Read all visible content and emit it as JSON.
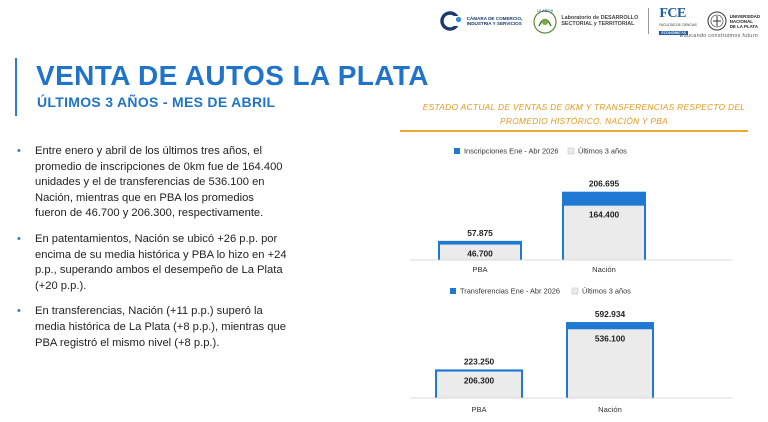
{
  "logos": {
    "camara": [
      "CÁMARA DE COMERCIO,",
      "INDUSTRIA Y SERVICIOS"
    ],
    "laboratorio_badge": "10 AÑOS",
    "laboratorio": [
      "Laboratorio de DESARROLLO",
      "SECTORIAL y TERRITORIAL"
    ],
    "fce_mark": "FCE",
    "fce_sub": "FACULTAD DE CIENCIAS",
    "fce_bar": "ECONÓMICAS",
    "unlp": [
      "UNIVERSIDAD",
      "NACIONAL",
      "DE LA PLATA"
    ],
    "tagline": "Educando construimos futuro"
  },
  "title": "VENTA DE AUTOS LA PLATA",
  "subtitle": "ÚLTIMOS 3 AÑOS - MES DE ABRIL",
  "chart_heading": [
    "ESTADO ACTUAL DE VENTAS DE 0KM Y TRANSFERENCIAS RESPECTO DEL",
    "PROMEDIO HISTÓRICO. NACIÓN Y PBA"
  ],
  "bullets": [
    "Entre enero y abril de los últimos tres años, el promedio de inscripciones de 0km fue de 164.400 unidades y el de transferencias de 536.100 en Nación, mientras que en PBA los promedios fueron de 46.700 y 206.300, respectivamente.",
    "En patentamientos, Nación se ubicó +26 p.p. por encima de su media histórica y PBA lo hizo en +24 p.p., superando ambos el desempeño de La Plata (+20 p.p.).",
    "En transferencias, Nación (+11 p.p.) superó la media histórica de La Plata (+8 p.p.), mientras que PBA registró el mismo nivel (+8 p.p.)."
  ],
  "colors": {
    "accent": "#1f73c8",
    "bar_current": "#1f78d1",
    "bar_avg": "#ebebeb",
    "heading": "#e39a1e"
  },
  "chart_data": [
    {
      "type": "bar",
      "categories": [
        "PBA",
        "Nación"
      ],
      "series": [
        {
          "name": "Inscripciones Ene - Abr 2026",
          "values": [
            57875,
            206695
          ],
          "labels": [
            "57.875",
            "206.695"
          ]
        },
        {
          "name": "Últimos 3 años",
          "values": [
            46700,
            164400
          ],
          "labels": [
            "46.700",
            "164.400"
          ]
        }
      ],
      "ylim": [
        0,
        230000
      ],
      "legend": "top-center",
      "grid": false
    },
    {
      "type": "bar",
      "categories": [
        "PBA",
        "Nación"
      ],
      "series": [
        {
          "name": "Transferencias Ene - Abr 2026",
          "values": [
            223250,
            592934
          ],
          "labels": [
            "223.250",
            "592.934"
          ]
        },
        {
          "name": "Últimos 3 años",
          "values": [
            206300,
            536100
          ],
          "labels": [
            "206.300",
            "536.100"
          ]
        }
      ],
      "ylim": [
        0,
        640000
      ],
      "legend": "top-center",
      "grid": false
    }
  ]
}
